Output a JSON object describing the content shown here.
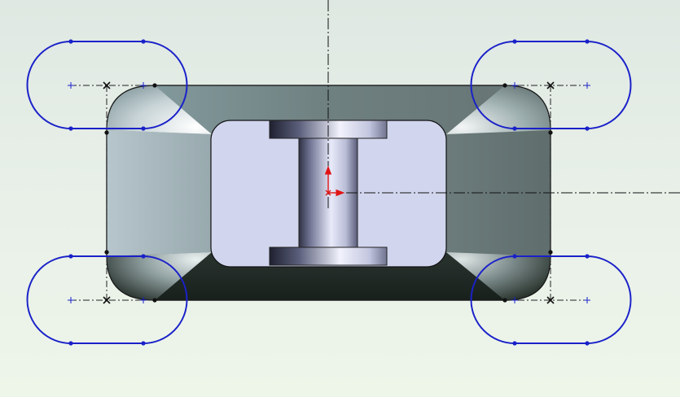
{
  "viewport": {
    "background_top": "#dfe8e2",
    "background_bottom": "#eef6ea"
  },
  "colors": {
    "part_top": "#6f8080",
    "part_right": "#667474",
    "part_bottom": "#1b241f",
    "part_left": "#9fb1b6",
    "pocket_fill": "#d1d6ee",
    "pocket_outline": "#111111",
    "spool_light": "#eef0fb",
    "spool_mid": "#a7abc5",
    "spool_dark": "#3a3d52",
    "sketch_slot": "#1a21c9",
    "sketch_point": "#1a21c9",
    "construction_line": "#222222",
    "origin_arrow": "#e01515",
    "centerline": "#111111"
  },
  "icons": {
    "origin": "origin-triad-icon",
    "sketch_point": "sketch-point-icon"
  }
}
